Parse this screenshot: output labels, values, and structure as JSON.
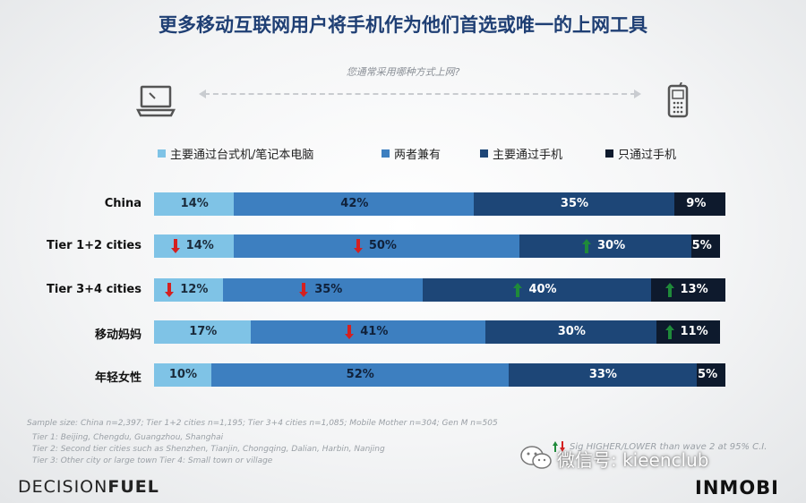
{
  "header": {
    "title": "更多移动互联网用户将手机作为他们首选或唯一的上网工具",
    "question": "您通常采用哪种方式上网?"
  },
  "chart_data": {
    "type": "bar",
    "orientation": "horizontal-stacked-100",
    "categories": [
      "China",
      "Tier 1+2 cities",
      "Tier 3+4 cities",
      "移动妈妈",
      "年轻女性"
    ],
    "series": [
      {
        "name": "主要通过台式机/笔记本电脑",
        "color": "#7fc3e6",
        "text_color": "#1a2a3a",
        "values": [
          14,
          14,
          12,
          17,
          10
        ]
      },
      {
        "name": "两者兼有",
        "color": "#3d7fc0",
        "text_color": "#10213a",
        "values": [
          42,
          50,
          35,
          41,
          52
        ]
      },
      {
        "name": "主要通过手机",
        "color": "#1d4677",
        "text_color": "#ffffff",
        "values": [
          35,
          30,
          40,
          30,
          33
        ]
      },
      {
        "name": "只通过手机",
        "color": "#0e1a2d",
        "text_color": "#ffffff",
        "values": [
          9,
          5,
          13,
          11,
          5
        ]
      }
    ],
    "labels": [
      [
        "14%",
        "42%",
        "35%",
        "9%"
      ],
      [
        "14%",
        "50%",
        "30%",
        "5%"
      ],
      [
        "12%",
        "35%",
        "40%",
        "13%"
      ],
      [
        "17%",
        "41%",
        "30%",
        "11%"
      ],
      [
        "10%",
        "52%",
        "33%",
        "5%"
      ]
    ],
    "significance": [
      [
        "",
        "",
        "",
        ""
      ],
      [
        "down",
        "down",
        "up",
        ""
      ],
      [
        "down",
        "down",
        "up",
        "up"
      ],
      [
        "",
        "down",
        "",
        "up"
      ],
      [
        "",
        "",
        "",
        ""
      ]
    ],
    "xlim": [
      0,
      100
    ],
    "legend_position": "top"
  },
  "footnotes": {
    "sample": "Sample size: China n=2,397; Tier 1+2 cities n=1,195; Tier 3+4 cities n=1,085; Mobile Mother n=304; Gen M n=505",
    "tier1": "Tier 1: Beijing, Chengdu, Guangzhou, Shanghai",
    "tier2": "Tier 2: Second tier cities such as Shenzhen, Tianjin, Chongqing, Dalian, Harbin, Nanjing",
    "tier3": "Tier 3: Other city or large town Tier 4: Small town or village",
    "significance": "Sig HIGHER/LOWER than wave 2 at 95% C.I."
  },
  "branding": {
    "left_logo_a": "DECISION",
    "left_logo_b": "FUEL",
    "right_logo": "INMOBI",
    "watermark": "微信号: kieenclub"
  },
  "colors": {
    "up_arrow": "#1f8a3a",
    "down_arrow": "#d42020"
  }
}
